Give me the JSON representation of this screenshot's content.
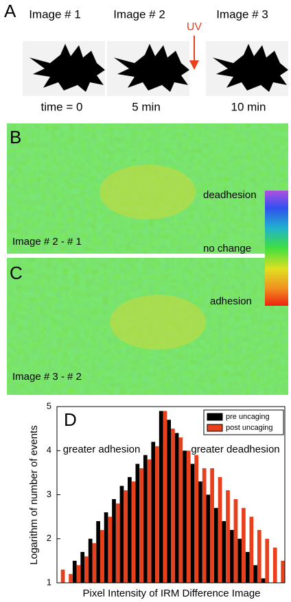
{
  "panel_a": {
    "label": "A",
    "uv": "UV",
    "images": [
      {
        "title": "Image # 1",
        "time": "time = 0"
      },
      {
        "title": "Image # 2",
        "time": "5 min"
      },
      {
        "title": "Image # 3",
        "time": "10 min"
      }
    ]
  },
  "panel_b": {
    "label": "B",
    "caption": "Image # 2 -  # 1"
  },
  "panel_c": {
    "label": "C",
    "caption": "Image # 3 -  # 2"
  },
  "colorbar": {
    "top": "deadhesion",
    "middle": "no change",
    "bottom": "adhesion"
  },
  "chart_data": {
    "type": "bar",
    "label": "D",
    "ylabel": "Logarithm of number of events",
    "xlabel": "Pixel Intensity of IRM Difference Image",
    "annotations": [
      "greater adhesion",
      "greater deadhesion"
    ],
    "categories": [
      null,
      null,
      null,
      null,
      null,
      null,
      null,
      null,
      null,
      null,
      null,
      null,
      null,
      null,
      null,
      null,
      null,
      null,
      null,
      null,
      null,
      null,
      null,
      null,
      null,
      null,
      null,
      null,
      null
    ],
    "series": [
      {
        "name": "pre uncaging",
        "color": "#000000",
        "values": [
          1,
          1,
          1.5,
          1.7,
          2.0,
          2.4,
          2.6,
          2.9,
          3.2,
          3.4,
          3.7,
          3.9,
          4.2,
          4.9,
          4.7,
          4.4,
          4.0,
          3.7,
          3.3,
          3.0,
          2.7,
          2.4,
          2.2,
          2.0,
          1.7,
          1.4,
          1.1,
          1,
          1
        ]
      },
      {
        "name": "post uncaging",
        "color": "#e8401c",
        "values": [
          1.3,
          1.2,
          1.4,
          1.6,
          1.9,
          2.2,
          2.5,
          2.8,
          3.1,
          3.3,
          3.6,
          3.8,
          4.1,
          4.9,
          4.5,
          4.3,
          4.0,
          3.9,
          3.6,
          3.6,
          3.4,
          3.1,
          2.9,
          2.7,
          2.5,
          2.2,
          2.0,
          1.8,
          1.5
        ]
      }
    ],
    "ylim": [
      1,
      5
    ],
    "yticks": [
      1,
      2,
      3,
      4,
      5
    ],
    "legend": "top-right"
  }
}
